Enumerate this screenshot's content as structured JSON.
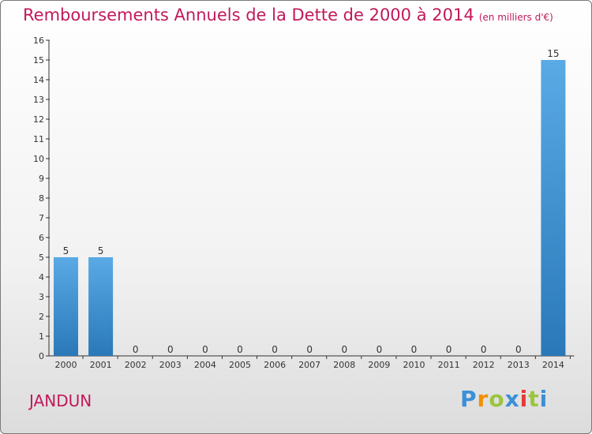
{
  "title": "Remboursements Annuels de la Dette de 2000 à 2014",
  "units": "(en milliers d'€)",
  "commune": "JANDUN",
  "logo": {
    "letters": [
      "P",
      "r",
      "o",
      "x",
      "i",
      "t",
      "i"
    ]
  },
  "colors": {
    "bar_top": "#5aaae6",
    "bar_bottom": "#2a78b8",
    "title": "#c2185b"
  },
  "chart_data": {
    "type": "bar",
    "title": "Remboursements Annuels de la Dette de 2000 à 2014",
    "categories": [
      "2000",
      "2001",
      "2002",
      "2003",
      "2004",
      "2005",
      "2006",
      "2007",
      "2008",
      "2009",
      "2010",
      "2011",
      "2012",
      "2013",
      "2014"
    ],
    "values": [
      5,
      5,
      0,
      0,
      0,
      0,
      0,
      0,
      0,
      0,
      0,
      0,
      0,
      0,
      15
    ],
    "ylim": [
      0,
      16
    ],
    "yticks": [
      0,
      1,
      2,
      3,
      4,
      5,
      6,
      7,
      8,
      9,
      10,
      11,
      12,
      13,
      14,
      15,
      16
    ],
    "grid": false
  }
}
